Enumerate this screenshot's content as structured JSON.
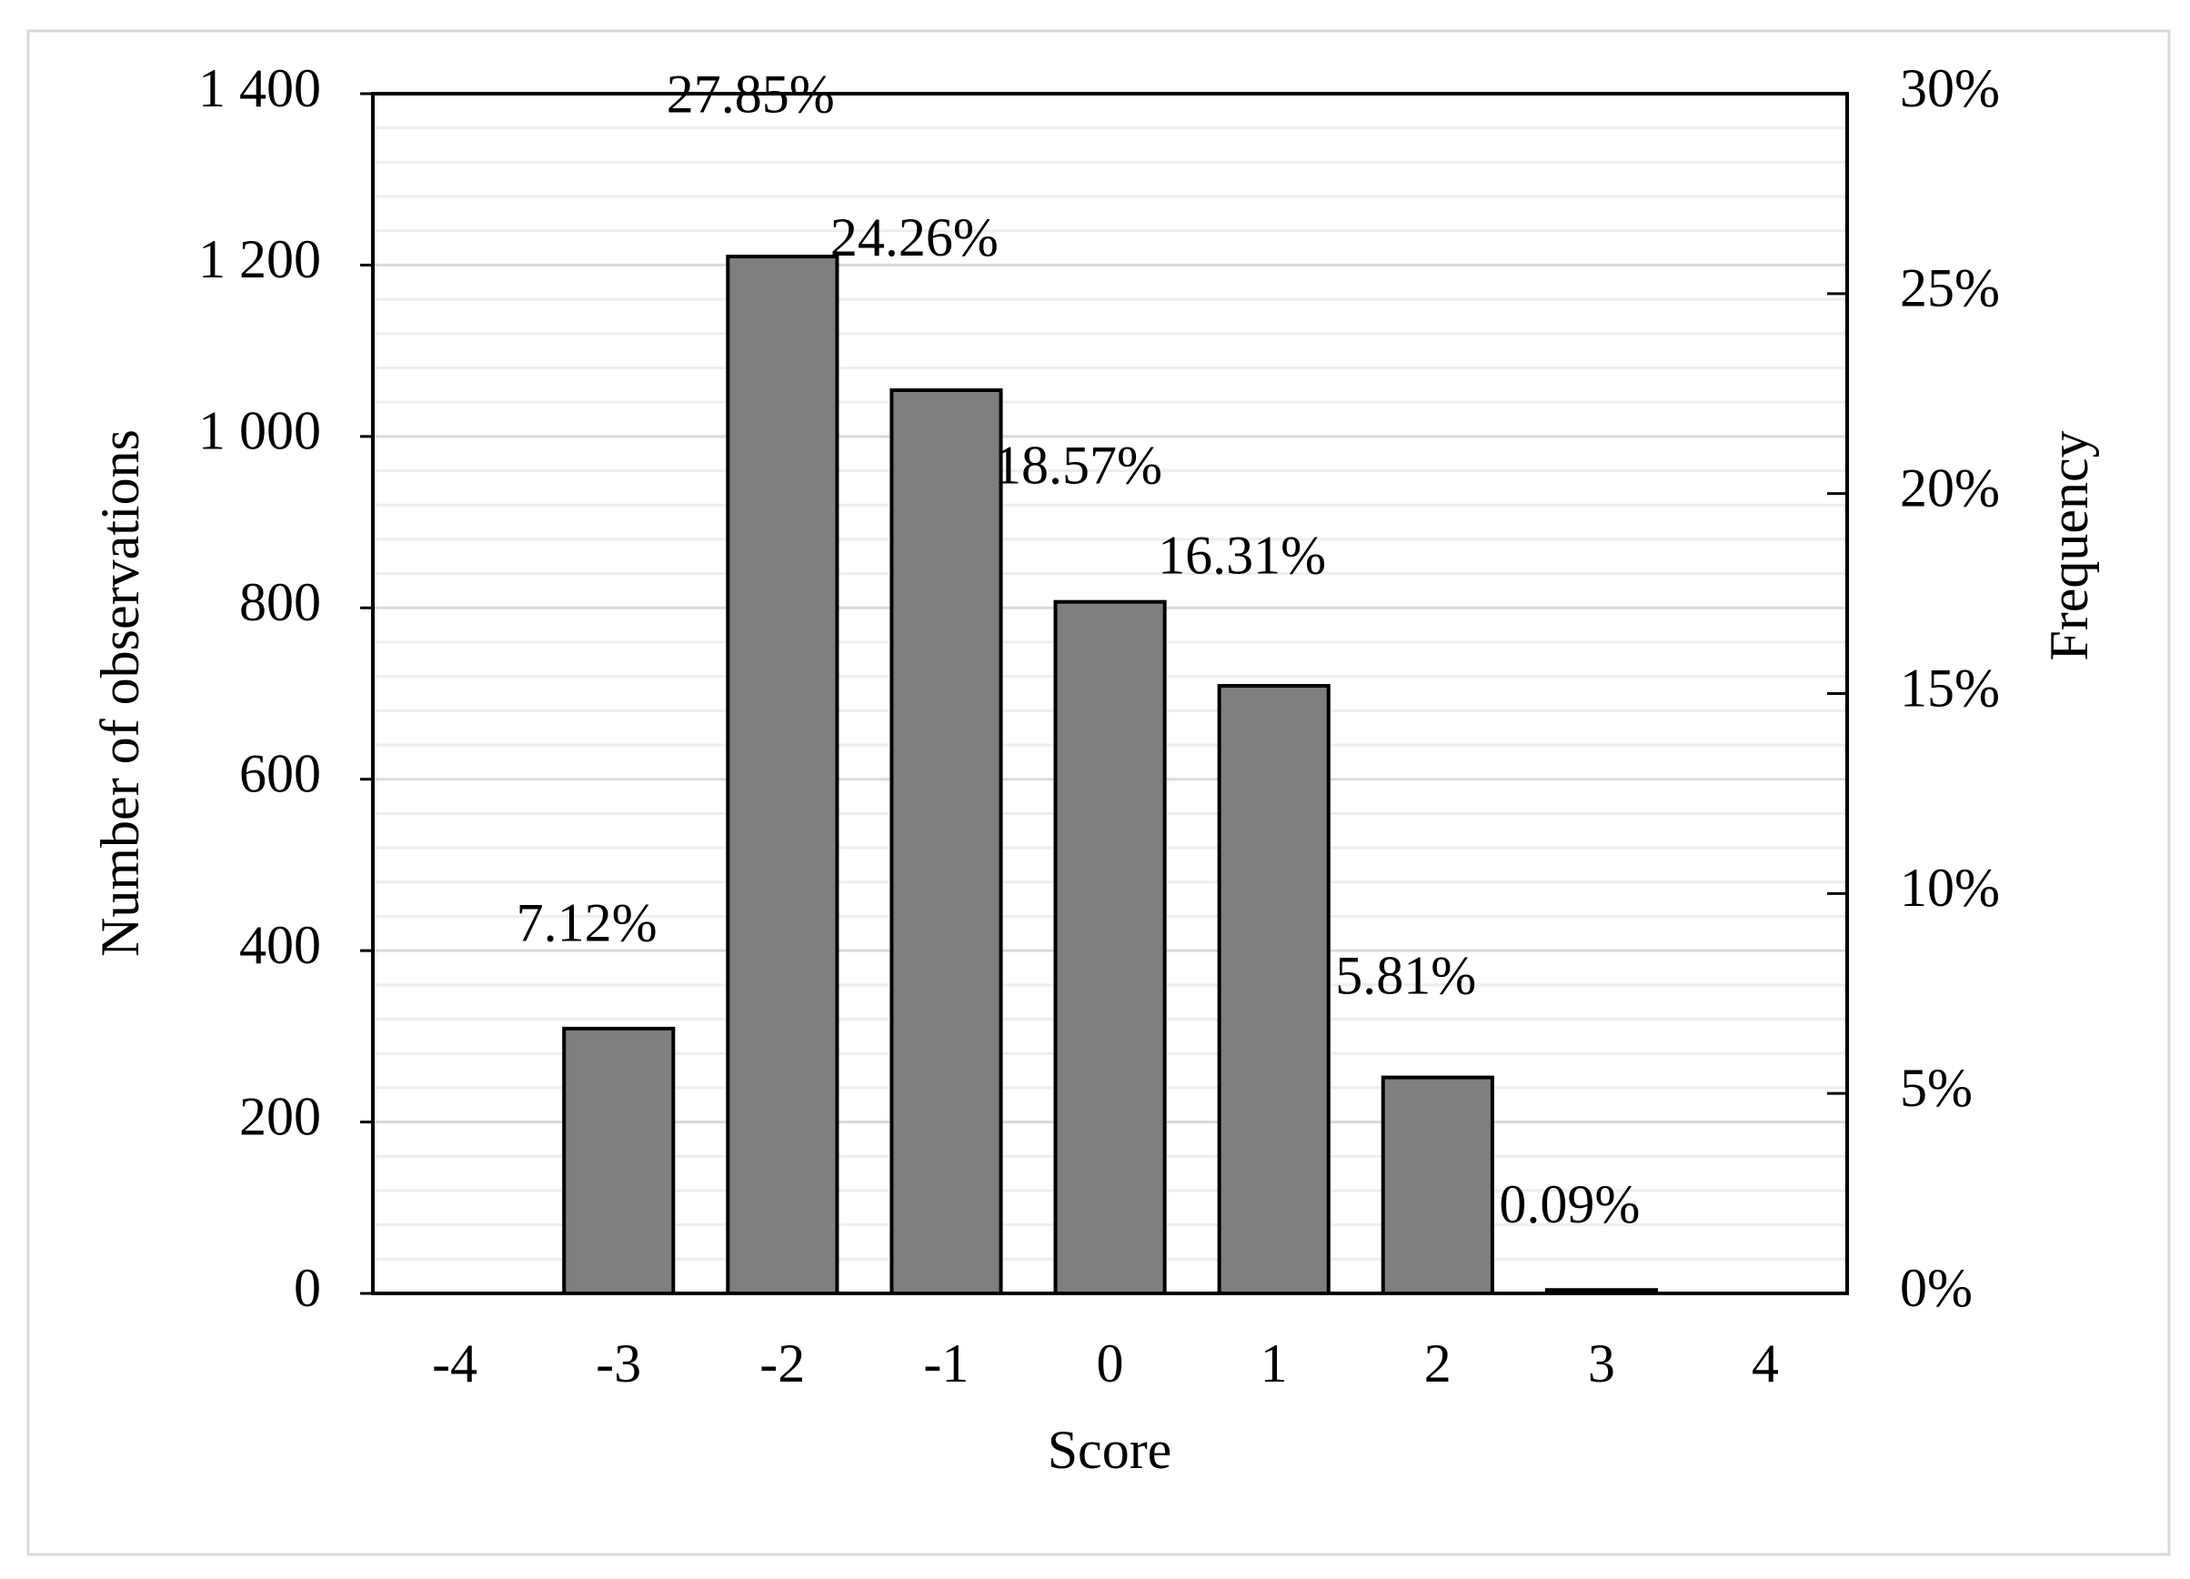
{
  "chart_data": {
    "type": "bar",
    "x_label": "Score",
    "y_label": "Number of observations",
    "y2_label": "Frequency",
    "categories": [
      "-4",
      "-3",
      "-2",
      "-1",
      "0",
      "1",
      "2",
      "3",
      "4"
    ],
    "values": [
      0,
      309,
      1210,
      1054,
      807,
      709,
      252,
      4,
      0
    ],
    "frequencies": [
      null,
      7.12,
      27.85,
      24.26,
      18.57,
      16.31,
      5.81,
      0.09,
      null
    ],
    "frequency_labels": [
      null,
      "7.12%",
      "27.85%",
      "24.26%",
      "18.57%",
      "16.31%",
      "5.81%",
      "0.09%",
      null
    ],
    "color": "#7f7f7f",
    "ylim": [
      0,
      1400
    ],
    "yticks": [
      0,
      200,
      400,
      600,
      800,
      {
        "value": 1000,
        "label": "1 000"
      },
      {
        "value": 1200,
        "label": "1 200"
      },
      {
        "value": 1400,
        "label": "1 400"
      }
    ],
    "y2lim": [
      0,
      30
    ],
    "y2ticks": [
      {
        "value": 0,
        "label": "0%"
      },
      {
        "value": 5,
        "label": "5%"
      },
      {
        "value": 10,
        "label": "10%"
      },
      {
        "value": 15,
        "label": "15%"
      },
      {
        "value": 20,
        "label": "20%"
      },
      {
        "value": 25,
        "label": "25%"
      },
      {
        "value": 30,
        "label": "30%"
      }
    ],
    "grid": true
  }
}
